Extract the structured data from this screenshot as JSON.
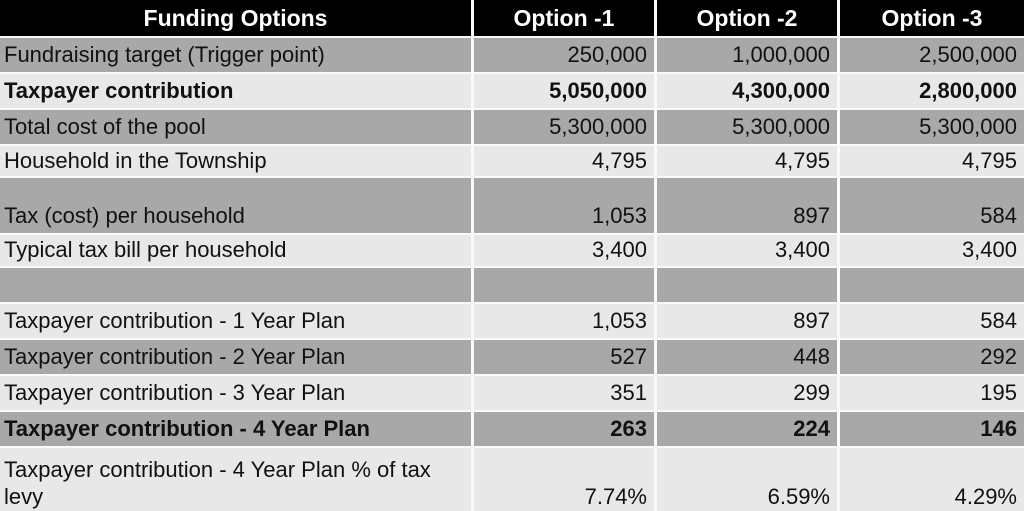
{
  "table": {
    "header": {
      "label": "Funding Options",
      "columns": [
        "Option -1",
        "Option -2",
        "Option -3"
      ]
    },
    "rows": [
      {
        "type": "data",
        "label": "Fundraising target (Trigger point)",
        "values": [
          "250,000",
          "1,000,000",
          "2,500,000"
        ],
        "bold": false,
        "shade": "dark"
      },
      {
        "type": "data",
        "label": "Taxpayer contribution",
        "values": [
          "5,050,000",
          "4,300,000",
          "2,800,000"
        ],
        "bold": true,
        "shade": "light"
      },
      {
        "type": "data",
        "label": "Total cost of the pool",
        "values": [
          "5,300,000",
          "5,300,000",
          "5,300,000"
        ],
        "bold": false,
        "shade": "dark"
      },
      {
        "type": "data",
        "label": "Household in the Township",
        "values": [
          "4,795",
          "4,795",
          "4,795"
        ],
        "bold": false,
        "shade": "light"
      },
      {
        "type": "spacer",
        "label": "",
        "values": [
          "",
          "",
          ""
        ],
        "bold": false,
        "shade": "dark",
        "merged_with_next": true
      },
      {
        "type": "data",
        "label": "Tax (cost) per household",
        "values": [
          "1,053",
          "897",
          "584"
        ],
        "bold": false,
        "shade": "dark"
      },
      {
        "type": "data",
        "label": "Typical tax bill per household",
        "values": [
          "3,400",
          "3,400",
          "3,400"
        ],
        "bold": false,
        "shade": "light"
      },
      {
        "type": "spacer",
        "label": "",
        "values": [
          "",
          "",
          ""
        ],
        "bold": false,
        "shade": "dark"
      },
      {
        "type": "data",
        "label": "Taxpayer contribution - 1 Year Plan",
        "values": [
          "1,053",
          "897",
          "584"
        ],
        "bold": false,
        "shade": "light"
      },
      {
        "type": "data",
        "label": "Taxpayer contribution - 2 Year Plan",
        "values": [
          "527",
          "448",
          "292"
        ],
        "bold": false,
        "shade": "dark"
      },
      {
        "type": "data",
        "label": "Taxpayer contribution - 3 Year Plan",
        "values": [
          "351",
          "299",
          "195"
        ],
        "bold": false,
        "shade": "light"
      },
      {
        "type": "data",
        "label": "Taxpayer contribution - 4 Year Plan",
        "values": [
          "263",
          "224",
          "146"
        ],
        "bold": true,
        "shade": "dark"
      },
      {
        "type": "data",
        "label": "Taxpayer contribution - 4 Year Plan % of tax levy",
        "values": [
          "7.74%",
          "6.59%",
          "4.29%"
        ],
        "bold": false,
        "shade": "light",
        "tall": true
      }
    ],
    "colors": {
      "header_bg": "#000000",
      "header_text": "#ffffff",
      "band_dark": "#a9a8a8",
      "band_light": "#e9e8e8",
      "grid": "#fafafa",
      "text": "#111111"
    }
  },
  "chart_data": {
    "type": "table",
    "title": "Funding Options",
    "columns": [
      "Funding Options",
      "Option -1",
      "Option -2",
      "Option -3"
    ],
    "rows": [
      {
        "label": "Fundraising target (Trigger point)",
        "values": [
          250000,
          1000000,
          2500000
        ]
      },
      {
        "label": "Taxpayer contribution",
        "values": [
          5050000,
          4300000,
          2800000
        ]
      },
      {
        "label": "Total cost of the pool",
        "values": [
          5300000,
          5300000,
          5300000
        ]
      },
      {
        "label": "Household in the Township",
        "values": [
          4795,
          4795,
          4795
        ]
      },
      {
        "label": "Tax (cost) per household",
        "values": [
          1053,
          897,
          584
        ]
      },
      {
        "label": "Typical tax bill per household",
        "values": [
          3400,
          3400,
          3400
        ]
      },
      {
        "label": "Taxpayer contribution - 1 Year Plan",
        "values": [
          1053,
          897,
          584
        ]
      },
      {
        "label": "Taxpayer contribution - 2 Year Plan",
        "values": [
          527,
          448,
          292
        ]
      },
      {
        "label": "Taxpayer contribution - 3 Year Plan",
        "values": [
          351,
          299,
          195
        ]
      },
      {
        "label": "Taxpayer contribution - 4 Year Plan",
        "values": [
          263,
          224,
          146
        ]
      },
      {
        "label": "Taxpayer contribution - 4 Year Plan % of tax levy",
        "values": [
          7.74,
          6.59,
          4.29
        ],
        "unit": "%"
      }
    ]
  }
}
